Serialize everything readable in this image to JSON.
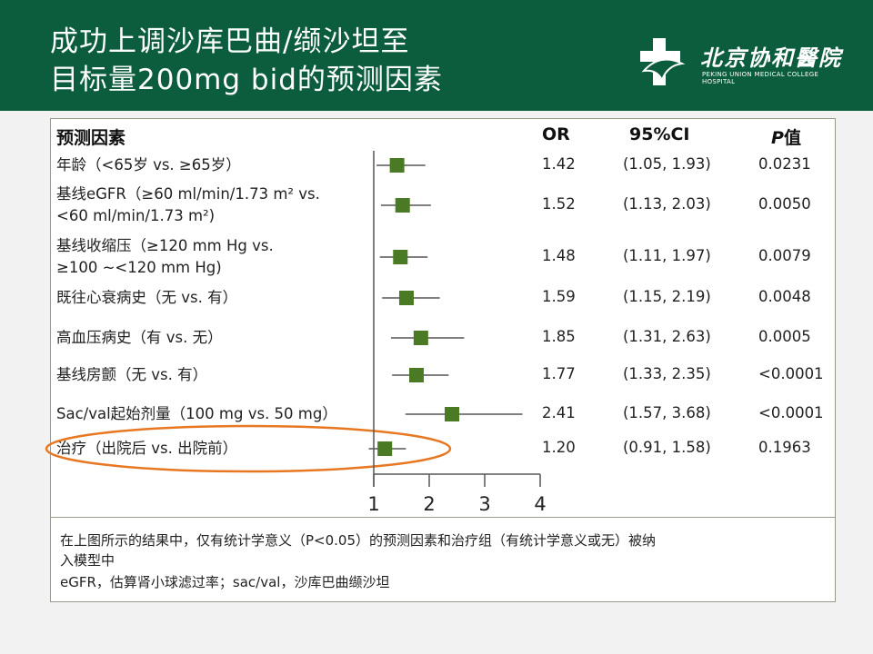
{
  "header": {
    "title_line1": "成功上调沙库巴曲/缬沙坦至",
    "title_line2": "目标量200mg bid的预测因素",
    "logo_cn": "北京协和醫院",
    "logo_en": "PEKING UNION MEDICAL COLLEGE HOSPITAL",
    "bg_color": "#0b5d3d"
  },
  "chart_data": {
    "type": "forest",
    "columns": {
      "factor": "预测因素",
      "or": "OR",
      "ci": "95%CI",
      "p_italic": "P",
      "p_suffix": "值"
    },
    "x_ticks": [
      "1",
      "2",
      "3",
      "4"
    ],
    "xlim": [
      1,
      4
    ],
    "marker_color": "#4a7a23",
    "rows": [
      {
        "label": [
          "年龄（<65岁 vs. ≥65岁）"
        ],
        "or": 1.42,
        "lo": 1.05,
        "hi": 1.93,
        "or_text": "1.42",
        "ci_text": "(1.05, 1.93)",
        "p_text": "0.0231"
      },
      {
        "label": [
          "基线eGFR（≥60 ml/min/1.73 m² vs.",
          "<60 ml/min/1.73 m²)"
        ],
        "or": 1.52,
        "lo": 1.13,
        "hi": 2.03,
        "or_text": "1.52",
        "ci_text": "(1.13, 2.03)",
        "p_text": "0.0050"
      },
      {
        "label": [
          "基线收缩压（≥120 mm Hg vs.",
          "≥100 ~<120 mm Hg)"
        ],
        "or": 1.48,
        "lo": 1.11,
        "hi": 1.97,
        "or_text": "1.48",
        "ci_text": "(1.11, 1.97)",
        "p_text": "0.0079"
      },
      {
        "label": [
          "既往心衰病史（无 vs. 有）"
        ],
        "or": 1.59,
        "lo": 1.15,
        "hi": 2.19,
        "or_text": "1.59",
        "ci_text": "(1.15, 2.19)",
        "p_text": "0.0048"
      },
      {
        "label": [
          "高血压病史（有 vs. 无）"
        ],
        "or": 1.85,
        "lo": 1.31,
        "hi": 2.63,
        "or_text": "1.85",
        "ci_text": "(1.31, 2.63)",
        "p_text": "0.0005"
      },
      {
        "label": [
          "基线房颤（无 vs. 有）"
        ],
        "or": 1.77,
        "lo": 1.33,
        "hi": 2.35,
        "or_text": "1.77",
        "ci_text": "(1.33, 2.35)",
        "p_text": "<0.0001"
      },
      {
        "label": [
          "Sac/val起始剂量（100 mg vs. 50 mg）"
        ],
        "or": 2.41,
        "lo": 1.57,
        "hi": 3.68,
        "or_text": "2.41",
        "ci_text": "(1.57, 3.68)",
        "p_text": "<0.0001"
      },
      {
        "label": [
          "治疗（出院后 vs. 出院前）"
        ],
        "or": 1.2,
        "lo": 0.91,
        "hi": 1.58,
        "or_text": "1.20",
        "ci_text": "(0.91, 1.58)",
        "p_text": "0.1963",
        "highlighted": true
      }
    ],
    "highlight_color": "#e87722"
  },
  "notes": {
    "line1": "在上图所示的结果中，仅有统计学意义（P<0.05）的预测因素和治疗组（有统计学意义或无）被纳",
    "line2": "入模型中",
    "line3": "eGFR，估算肾小球滤过率；sac/val，沙库巴曲缬沙坦"
  }
}
